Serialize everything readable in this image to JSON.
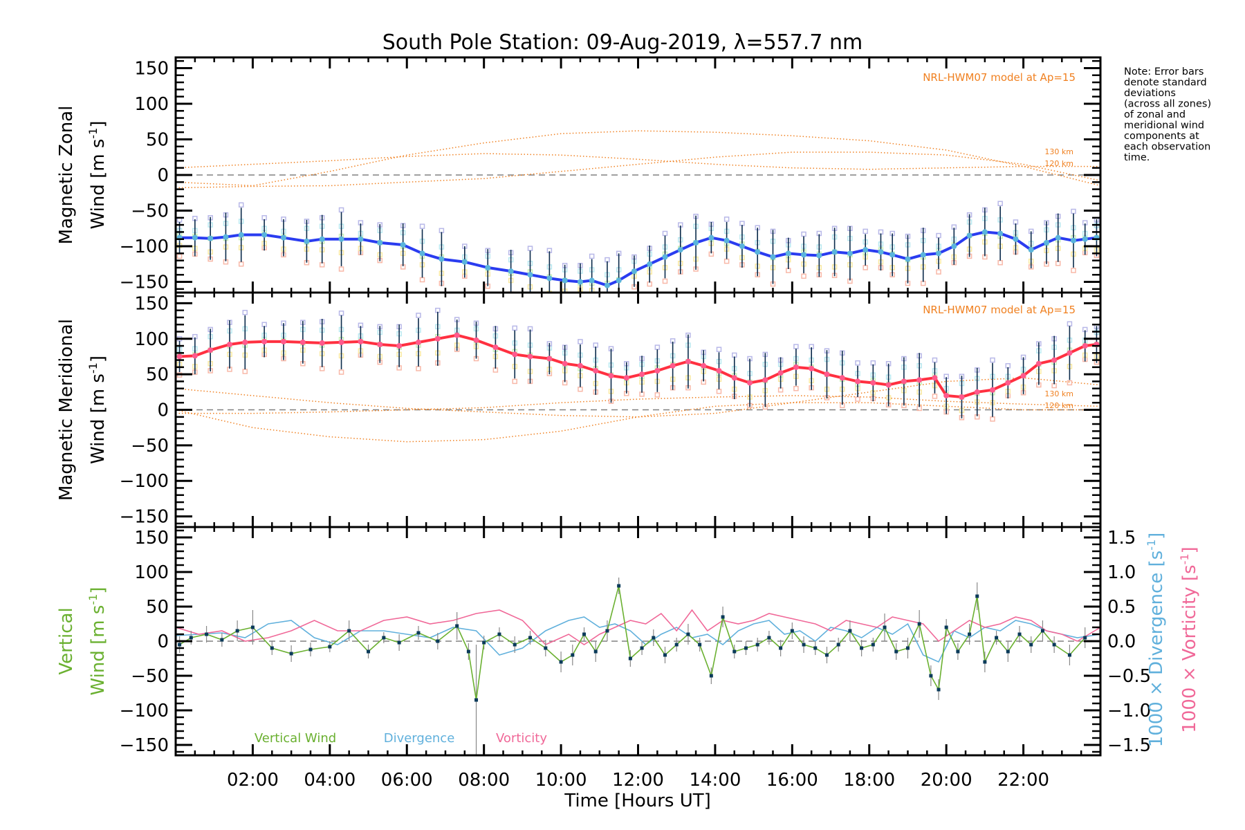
{
  "chart_data": {
    "type": "line",
    "title": "South Pole Station: 09-Aug-2019, λ=557.7 nm",
    "note_lines": [
      "Note: Error bars",
      "denote standard",
      "deviations",
      "(across all zones)",
      "of zonal and",
      "meridional wind",
      "components at",
      "each observation",
      "time."
    ],
    "x_axis": {
      "label": "Time [Hours UT]",
      "range_hours": [
        0,
        24
      ],
      "ticks": [
        2,
        4,
        6,
        8,
        10,
        12,
        14,
        16,
        18,
        20,
        22
      ],
      "tick_labels": [
        "02:00",
        "04:00",
        "06:00",
        "08:00",
        "10:00",
        "12:00",
        "14:00",
        "16:00",
        "18:00",
        "20:00",
        "22:00"
      ]
    },
    "colors": {
      "zonal_line": "#2a3cf0",
      "zonal_marker": "#5ab4dc",
      "meridional_line": "#ff3040",
      "meridional_marker": "#ff5a8c",
      "model": "#f08020",
      "vertical": "#6ab030",
      "divergence": "#60b0dc",
      "vorticity": "#f06898",
      "errorbar": "#0a2a4a",
      "zero_line": "#808080"
    },
    "panels": [
      {
        "id": "zonal",
        "ylabel_line1": "Magnetic Zonal",
        "ylabel_line2": "Wind [m s",
        "ylabel_sup": "-1",
        "ylabel_close": "]",
        "ylim": [
          -165,
          165
        ],
        "yticks": [
          150,
          100,
          50,
          0,
          -50,
          -100,
          -150
        ],
        "ytick_labels": [
          "150",
          "100",
          "50",
          "0",
          "−50",
          "−100",
          "−150"
        ],
        "model_label": "NRL-HWM07 model at Ap=15",
        "km_labels": [
          "130 km",
          "120 km"
        ],
        "series_name": "Magnetic Zonal Wind",
        "x": [
          0.1,
          0.5,
          0.9,
          1.3,
          1.7,
          2.3,
          2.8,
          3.4,
          3.8,
          4.3,
          4.8,
          5.3,
          5.9,
          6.4,
          6.9,
          7.5,
          8.1,
          8.7,
          9.2,
          9.7,
          10.1,
          10.5,
          10.8,
          11.2,
          11.5,
          11.9,
          12.3,
          12.7,
          13.1,
          13.5,
          13.9,
          14.3,
          14.7,
          15.1,
          15.5,
          15.9,
          16.3,
          16.7,
          17.1,
          17.5,
          17.9,
          18.3,
          18.6,
          19.0,
          19.4,
          19.8,
          20.2,
          20.6,
          21.0,
          21.4,
          21.8,
          22.2,
          22.6,
          22.9,
          23.3,
          23.6,
          23.9
        ],
        "y": [
          -88,
          -88,
          -89,
          -87,
          -84,
          -84,
          -88,
          -93,
          -90,
          -90,
          -90,
          -95,
          -98,
          -110,
          -118,
          -122,
          -130,
          -135,
          -140,
          -145,
          -148,
          -150,
          -148,
          -155,
          -148,
          -135,
          -125,
          -115,
          -105,
          -95,
          -88,
          -92,
          -100,
          -108,
          -115,
          -110,
          -112,
          -113,
          -108,
          -110,
          -105,
          -108,
          -112,
          -118,
          -112,
          -110,
          -100,
          -85,
          -80,
          -82,
          -90,
          -105,
          -95,
          -88,
          -92,
          -90,
          -88
        ],
        "model_curves": [
          {
            "name": "130 km",
            "x": [
              0,
              2,
              4,
              6,
              8,
              10,
              12,
              14,
              16,
              18,
              20,
              22,
              24
            ],
            "y": [
              -10,
              -15,
              5,
              28,
              45,
              58,
              62,
              60,
              55,
              48,
              35,
              12,
              -15
            ]
          },
          {
            "name": "120 km",
            "x": [
              0,
              2,
              4,
              6,
              8,
              10,
              12,
              14,
              16,
              18,
              20,
              22,
              24
            ],
            "y": [
              10,
              15,
              20,
              26,
              30,
              28,
              22,
              15,
              10,
              8,
              10,
              12,
              12
            ]
          },
          {
            "name": "model-3",
            "x": [
              0,
              2,
              4,
              6,
              8,
              10,
              12,
              14,
              16,
              18,
              20,
              22,
              24
            ],
            "y": [
              -18,
              -16,
              -15,
              -10,
              -5,
              5,
              15,
              25,
              32,
              32,
              28,
              15,
              -8
            ]
          }
        ]
      },
      {
        "id": "meridional",
        "ylabel_line1": "Magnetic Meridional",
        "ylabel_line2": "Wind [m s",
        "ylabel_sup": "-1",
        "ylabel_close": "]",
        "ylim": [
          -165,
          165
        ],
        "yticks": [
          150,
          100,
          50,
          0,
          -50,
          -100,
          -150
        ],
        "ytick_labels": [
          "150",
          "100",
          "50",
          "0",
          "−50",
          "−100",
          "−150"
        ],
        "model_label": "NRL-HWM07 model at Ap=15",
        "km_labels": [
          "130 km",
          "120 km"
        ],
        "series_name": "Magnetic Meridional Wind",
        "x": [
          0.1,
          0.5,
          0.9,
          1.4,
          1.8,
          2.3,
          2.8,
          3.3,
          3.8,
          4.3,
          4.8,
          5.3,
          5.8,
          6.3,
          6.8,
          7.3,
          7.8,
          8.3,
          8.8,
          9.2,
          9.7,
          10.1,
          10.5,
          10.9,
          11.3,
          11.7,
          12.1,
          12.5,
          12.9,
          13.3,
          13.7,
          14.1,
          14.5,
          14.9,
          15.3,
          15.7,
          16.1,
          16.5,
          16.9,
          17.3,
          17.7,
          18.1,
          18.5,
          18.9,
          19.3,
          19.7,
          20.0,
          20.4,
          20.8,
          21.2,
          21.6,
          22.0,
          22.4,
          22.8,
          23.2,
          23.6,
          23.9
        ],
        "y": [
          75,
          76,
          84,
          92,
          95,
          96,
          96,
          95,
          94,
          95,
          96,
          92,
          90,
          95,
          100,
          105,
          98,
          88,
          78,
          75,
          72,
          65,
          62,
          55,
          48,
          45,
          50,
          55,
          62,
          68,
          62,
          55,
          45,
          38,
          42,
          52,
          60,
          58,
          50,
          45,
          40,
          38,
          35,
          40,
          42,
          45,
          20,
          18,
          25,
          28,
          38,
          48,
          65,
          70,
          80,
          90,
          92
        ],
        "model_curves": [
          {
            "name": "130 km",
            "x": [
              0,
              2,
              4,
              6,
              8,
              10,
              12,
              14,
              16,
              18,
              20,
              22,
              24
            ],
            "y": [
              30,
              20,
              10,
              2,
              -3,
              -8,
              -10,
              -5,
              10,
              25,
              40,
              45,
              35
            ]
          },
          {
            "name": "120 km",
            "x": [
              0,
              2,
              4,
              6,
              8,
              10,
              12,
              14,
              16,
              18,
              20,
              22,
              24
            ],
            "y": [
              -5,
              -5,
              -3,
              0,
              3,
              10,
              15,
              18,
              20,
              18,
              12,
              8,
              5
            ]
          },
          {
            "name": "model-3",
            "x": [
              0,
              2,
              4,
              6,
              8,
              10,
              12,
              14,
              16,
              18,
              20,
              22,
              24
            ],
            "y": [
              0,
              -25,
              -38,
              -45,
              -42,
              -30,
              -10,
              5,
              10,
              10,
              5,
              0,
              0
            ]
          }
        ]
      },
      {
        "id": "vertical",
        "ylabel_line1": "Vertical",
        "ylabel_line2": "Wind [m s",
        "ylabel_sup": "-1",
        "ylabel_close": "]",
        "ylim": [
          -165,
          165
        ],
        "yticks": [
          150,
          100,
          50,
          0,
          -50,
          -100,
          -150
        ],
        "ytick_labels": [
          "150",
          "100",
          "50",
          "0",
          "−50",
          "−100",
          "−150"
        ],
        "right_axis": {
          "ylim": [
            -1.65,
            1.65
          ],
          "yticks": [
            1.5,
            1.0,
            0.5,
            0.0,
            -0.5,
            -1.0,
            -1.5
          ],
          "ytick_labels": [
            "1.5",
            "1.0",
            "0.5",
            "0.0",
            "−0.5",
            "−1.0",
            "−1.5"
          ],
          "label_divergence": "1000 × Divergence [s",
          "label_vorticity": "1000 × Vorticity [s",
          "label_sup": "-1",
          "label_close": "]"
        },
        "legend": [
          "Vertical Wind",
          "Divergence",
          "Vorticity"
        ],
        "vertical_wind": {
          "x": [
            0.1,
            0.4,
            0.8,
            1.2,
            1.6,
            2.0,
            2.5,
            3.0,
            3.5,
            4.0,
            4.5,
            5.0,
            5.4,
            5.8,
            6.3,
            6.8,
            7.3,
            7.6,
            7.8,
            8.0,
            8.4,
            8.8,
            9.2,
            9.6,
            10.0,
            10.3,
            10.6,
            10.9,
            11.2,
            11.5,
            11.8,
            12.1,
            12.4,
            12.7,
            13.0,
            13.3,
            13.6,
            13.9,
            14.2,
            14.5,
            14.8,
            15.1,
            15.4,
            15.7,
            16.0,
            16.3,
            16.6,
            16.9,
            17.2,
            17.5,
            17.8,
            18.1,
            18.4,
            18.7,
            19.0,
            19.3,
            19.6,
            19.8,
            20.0,
            20.3,
            20.6,
            20.8,
            21.0,
            21.3,
            21.6,
            21.9,
            22.2,
            22.5,
            22.8,
            23.2,
            23.6
          ],
          "y": [
            -5,
            5,
            10,
            2,
            15,
            20,
            -10,
            -18,
            -12,
            -8,
            15,
            -15,
            5,
            -2,
            12,
            0,
            22,
            -15,
            -85,
            -2,
            10,
            -5,
            5,
            -10,
            -30,
            -20,
            10,
            -15,
            15,
            80,
            -25,
            -10,
            5,
            -20,
            -5,
            10,
            -5,
            -50,
            35,
            -15,
            -10,
            -5,
            5,
            -10,
            15,
            -5,
            -10,
            -20,
            -5,
            15,
            -10,
            -5,
            20,
            -15,
            -10,
            25,
            -50,
            -70,
            20,
            -15,
            10,
            65,
            -30,
            5,
            -15,
            10,
            -5,
            15,
            -5,
            -20,
            5
          ],
          "err": [
            12,
            10,
            12,
            10,
            15,
            25,
            10,
            12,
            10,
            8,
            15,
            10,
            8,
            12,
            10,
            12,
            20,
            12,
            80,
            10,
            10,
            12,
            10,
            12,
            15,
            15,
            10,
            15,
            15,
            12,
            12,
            10,
            12,
            12,
            10,
            15,
            10,
            12,
            15,
            10,
            10,
            10,
            10,
            12,
            12,
            12,
            10,
            12,
            10,
            15,
            12,
            10,
            20,
            12,
            15,
            20,
            15,
            15,
            12,
            12,
            15,
            20,
            15,
            10,
            15,
            12,
            12,
            15,
            12,
            15,
            15
          ]
        },
        "divergence_x1000": {
          "x": [
            0,
            0.6,
            1.2,
            1.8,
            2.4,
            3.0,
            3.6,
            4.2,
            4.8,
            5.4,
            6.0,
            6.6,
            7.2,
            7.8,
            8.4,
            9.0,
            9.6,
            10.2,
            10.6,
            11.0,
            11.4,
            11.8,
            12.2,
            12.6,
            13.0,
            13.4,
            13.8,
            14.2,
            14.6,
            15.0,
            15.4,
            15.8,
            16.2,
            16.6,
            17.0,
            17.4,
            17.8,
            18.2,
            18.6,
            19.0,
            19.4,
            19.8,
            20.2,
            20.6,
            21.0,
            21.4,
            21.8,
            22.2,
            22.6,
            23.0,
            23.4,
            24.0
          ],
          "y": [
            0.08,
            0.1,
            0.12,
            0.05,
            0.25,
            0.3,
            0.05,
            -0.05,
            0.15,
            0.15,
            0.1,
            0.05,
            0.2,
            0.15,
            -0.2,
            -0.1,
            0.15,
            0.3,
            0.35,
            0.2,
            0.25,
            0.15,
            -0.05,
            0.1,
            0.2,
            0.05,
            0.1,
            -0.05,
            0.15,
            0.25,
            0.3,
            0.1,
            0.15,
            0.0,
            0.2,
            0.15,
            0.05,
            0.2,
            0.1,
            0.25,
            -0.2,
            -0.3,
            0.15,
            0.05,
            0.2,
            0.15,
            0.3,
            0.25,
            0.15,
            0.1,
            0.05,
            0.1
          ]
        },
        "vorticity_x1000": {
          "x": [
            0,
            0.6,
            1.2,
            1.8,
            2.4,
            3.0,
            3.6,
            4.2,
            4.8,
            5.4,
            6.0,
            6.6,
            7.2,
            7.8,
            8.4,
            9.0,
            9.6,
            10.2,
            10.6,
            11.0,
            11.4,
            11.8,
            12.2,
            12.6,
            13.0,
            13.4,
            13.8,
            14.2,
            14.6,
            15.0,
            15.4,
            15.8,
            16.2,
            16.6,
            17.0,
            17.4,
            17.8,
            18.2,
            18.6,
            19.0,
            19.4,
            19.8,
            20.2,
            20.6,
            21.0,
            21.4,
            21.8,
            22.2,
            22.6,
            23.0,
            23.4,
            24.0
          ],
          "y": [
            0.2,
            0.1,
            0.15,
            0.0,
            0.05,
            0.15,
            0.3,
            0.15,
            0.15,
            0.3,
            0.35,
            0.25,
            0.3,
            0.4,
            0.45,
            0.3,
            -0.05,
            0.1,
            -0.05,
            0.1,
            0.2,
            0.3,
            0.25,
            0.4,
            0.15,
            0.45,
            0.15,
            0.3,
            0.25,
            0.3,
            0.4,
            0.35,
            0.3,
            0.25,
            0.15,
            0.3,
            0.25,
            0.2,
            0.35,
            0.3,
            0.25,
            0.0,
            0.15,
            0.3,
            0.2,
            0.25,
            0.35,
            0.3,
            0.15,
            0.1,
            0.0,
            0.2
          ]
        }
      }
    ]
  }
}
